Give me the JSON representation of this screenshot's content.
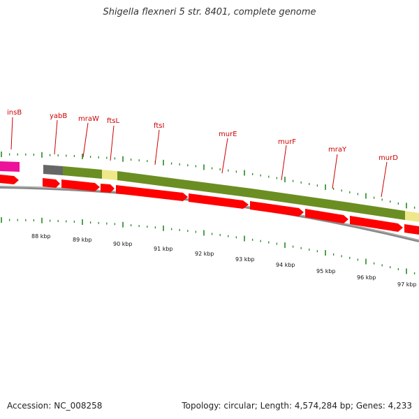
{
  "title": "Shigella flexneri 5 str. 8401, complete genome",
  "footer": {
    "accession": "Accession: NC_008258",
    "summary": "Topology: circular; Length: 4,574,284 bp; Genes: 4,233"
  },
  "genes": [
    {
      "name": "insB",
      "label_color": "#cc0000"
    },
    {
      "name": "yabB",
      "label_color": "#cc0000"
    },
    {
      "name": "mraW",
      "label_color": "#cc0000"
    },
    {
      "name": "ftsL",
      "label_color": "#cc0000"
    },
    {
      "name": "ftsI",
      "label_color": "#cc0000"
    },
    {
      "name": "murE",
      "label_color": "#cc0000"
    },
    {
      "name": "murF",
      "label_color": "#cc0000"
    },
    {
      "name": "mraY",
      "label_color": "#cc0000"
    },
    {
      "name": "murD",
      "label_color": "#cc0000"
    }
  ],
  "scale_labels": [
    "88 kbp",
    "89 kbp",
    "90 kbp",
    "91 kbp",
    "92 kbp",
    "93 kbp",
    "94 kbp",
    "95 kbp",
    "96 kbp",
    "97 kbp"
  ],
  "colors": {
    "cds": "#ff0000",
    "insertion": "#ee1199",
    "cog_green": "#6b8e23",
    "cog_yellow": "#eee88a",
    "cog_gray": "#666666",
    "backbone": "#888888",
    "ticks": "#228b22",
    "label_text": "#cc0000"
  }
}
